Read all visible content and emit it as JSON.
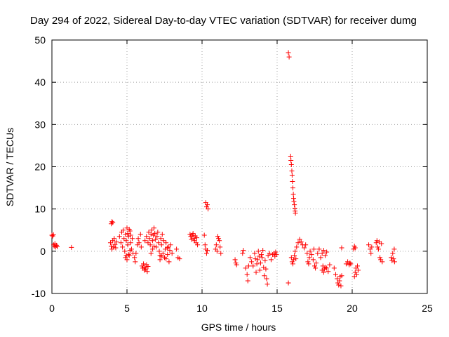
{
  "chart_data": {
    "type": "scatter",
    "title": "Day 294 of 2022, Sidereal Day-to-day VTEC variation (SDTVAR) for receiver dumg",
    "xlabel": "GPS time / hours",
    "ylabel": "SDTVAR / TECUs",
    "xlim": [
      0,
      25
    ],
    "ylim": [
      -10,
      50
    ],
    "xticks": [
      0,
      5,
      10,
      15,
      20,
      25
    ],
    "yticks": [
      -10,
      0,
      10,
      20,
      30,
      40,
      50
    ],
    "xtick_labels": [
      "0",
      "5",
      "10",
      "15",
      "20",
      "25"
    ],
    "ytick_labels": [
      "-10",
      "0",
      "10",
      "20",
      "30",
      "40",
      "50"
    ],
    "grid": true,
    "marker": "+",
    "color": "#ff0000",
    "series": [
      {
        "name": "SDTVAR",
        "points": [
          [
            0.0,
            3.8
          ],
          [
            0.05,
            3.6
          ],
          [
            0.1,
            3.9
          ],
          [
            0.12,
            1.5
          ],
          [
            0.15,
            1.2
          ],
          [
            0.2,
            1.8
          ],
          [
            0.25,
            1.0
          ],
          [
            0.3,
            1.4
          ],
          [
            0.35,
            1.1
          ],
          [
            1.3,
            0.9
          ],
          [
            3.95,
            6.5
          ],
          [
            4.0,
            7.0
          ],
          [
            4.05,
            6.8
          ],
          [
            3.9,
            2.0
          ],
          [
            3.95,
            1.2
          ],
          [
            4.0,
            0.5
          ],
          [
            4.05,
            2.5
          ],
          [
            4.1,
            1.0
          ],
          [
            4.15,
            3.0
          ],
          [
            4.2,
            1.6
          ],
          [
            4.25,
            0.8
          ],
          [
            4.3,
            2.2
          ],
          [
            4.5,
            3.5
          ],
          [
            4.6,
            2.0
          ],
          [
            4.65,
            4.5
          ],
          [
            4.7,
            1.0
          ],
          [
            4.75,
            5.0
          ],
          [
            4.8,
            3.0
          ],
          [
            4.85,
            0.0
          ],
          [
            4.9,
            4.0
          ],
          [
            4.95,
            2.5
          ],
          [
            5.0,
            5.5
          ],
          [
            5.05,
            1.5
          ],
          [
            5.1,
            3.5
          ],
          [
            5.15,
            -1.0
          ],
          [
            5.2,
            4.8
          ],
          [
            5.25,
            2.0
          ],
          [
            5.3,
            0.5
          ],
          [
            5.35,
            3.0
          ],
          [
            5.4,
            -0.5
          ],
          [
            4.9,
            -1.5
          ],
          [
            5.0,
            -2.0
          ],
          [
            5.1,
            -0.8
          ],
          [
            5.2,
            0.2
          ],
          [
            4.95,
            -1.0
          ],
          [
            5.05,
            4.2
          ],
          [
            5.15,
            5.2
          ],
          [
            5.25,
            3.8
          ],
          [
            5.5,
            -1.5
          ],
          [
            5.55,
            -2.5
          ],
          [
            5.6,
            -0.5
          ],
          [
            5.7,
            1.5
          ],
          [
            5.75,
            3.0
          ],
          [
            5.8,
            2.0
          ],
          [
            5.9,
            4.0
          ],
          [
            5.95,
            1.0
          ],
          [
            6.0,
            -3.5
          ],
          [
            6.05,
            -4.0
          ],
          [
            6.1,
            -3.0
          ],
          [
            6.15,
            -4.5
          ],
          [
            6.2,
            -3.8
          ],
          [
            6.25,
            -4.2
          ],
          [
            6.3,
            -3.2
          ],
          [
            6.35,
            -4.8
          ],
          [
            6.4,
            -3.6
          ],
          [
            6.2,
            2.5
          ],
          [
            6.3,
            3.5
          ],
          [
            6.4,
            2.0
          ],
          [
            6.45,
            4.5
          ],
          [
            6.5,
            3.0
          ],
          [
            6.55,
            1.5
          ],
          [
            6.6,
            4.0
          ],
          [
            6.65,
            5.0
          ],
          [
            6.7,
            2.5
          ],
          [
            6.75,
            3.8
          ],
          [
            6.8,
            5.5
          ],
          [
            6.85,
            4.2
          ],
          [
            6.9,
            2.8
          ],
          [
            6.95,
            1.0
          ],
          [
            7.0,
            3.5
          ],
          [
            6.7,
            0.5
          ],
          [
            6.6,
            -0.5
          ],
          [
            6.8,
            1.2
          ],
          [
            7.05,
            4.5
          ],
          [
            7.1,
            2.0
          ],
          [
            7.15,
            0.0
          ],
          [
            7.2,
            -1.0
          ],
          [
            7.25,
            3.0
          ],
          [
            7.3,
            1.5
          ],
          [
            7.35,
            4.0
          ],
          [
            7.4,
            -0.5
          ],
          [
            7.45,
            2.5
          ],
          [
            7.5,
            -1.5
          ],
          [
            7.55,
            0.5
          ],
          [
            7.6,
            2.0
          ],
          [
            7.7,
            -0.8
          ],
          [
            7.75,
            1.0
          ],
          [
            7.8,
            -2.5
          ],
          [
            7.85,
            0.2
          ],
          [
            7.9,
            1.5
          ],
          [
            8.0,
            -0.5
          ],
          [
            7.2,
            -2.0
          ],
          [
            7.3,
            -1.2
          ],
          [
            7.6,
            -1.8
          ],
          [
            7.7,
            0.8
          ],
          [
            8.3,
            0.5
          ],
          [
            8.4,
            -1.5
          ],
          [
            8.5,
            -1.8
          ],
          [
            9.2,
            4.0
          ],
          [
            9.25,
            3.5
          ],
          [
            9.3,
            2.8
          ],
          [
            9.35,
            3.8
          ],
          [
            9.4,
            4.2
          ],
          [
            9.45,
            3.0
          ],
          [
            9.5,
            2.5
          ],
          [
            9.55,
            3.6
          ],
          [
            9.6,
            2.0
          ],
          [
            9.65,
            3.2
          ],
          [
            9.7,
            1.5
          ],
          [
            10.15,
            3.8
          ],
          [
            10.2,
            1.5
          ],
          [
            10.25,
            0.5
          ],
          [
            10.3,
            -0.5
          ],
          [
            10.35,
            0.2
          ],
          [
            10.25,
            11.5
          ],
          [
            10.3,
            10.5
          ],
          [
            10.35,
            11.0
          ],
          [
            10.4,
            10.0
          ],
          [
            10.9,
            0.5
          ],
          [
            10.95,
            1.5
          ],
          [
            11.0,
            0.0
          ],
          [
            11.05,
            3.5
          ],
          [
            11.1,
            3.0
          ],
          [
            11.15,
            2.5
          ],
          [
            11.2,
            1.0
          ],
          [
            11.25,
            -0.5
          ],
          [
            12.2,
            -2.0
          ],
          [
            12.25,
            -2.8
          ],
          [
            12.3,
            -3.2
          ],
          [
            12.7,
            -0.5
          ],
          [
            12.75,
            0.2
          ],
          [
            12.9,
            -4.0
          ],
          [
            13.0,
            -5.5
          ],
          [
            13.05,
            -7.0
          ],
          [
            13.1,
            -3.5
          ],
          [
            13.2,
            -1.5
          ],
          [
            13.3,
            -2.5
          ],
          [
            13.4,
            -3.5
          ],
          [
            13.5,
            -0.5
          ],
          [
            13.55,
            -1.8
          ],
          [
            13.6,
            -5.0
          ],
          [
            13.65,
            -3.0
          ],
          [
            13.7,
            -2.0
          ],
          [
            13.75,
            0.0
          ],
          [
            13.8,
            -1.2
          ],
          [
            13.85,
            -4.5
          ],
          [
            13.9,
            -2.8
          ],
          [
            13.95,
            -0.8
          ],
          [
            14.0,
            -1.5
          ],
          [
            14.05,
            0.2
          ],
          [
            14.1,
            -3.8
          ],
          [
            14.15,
            -5.8
          ],
          [
            14.2,
            -2.2
          ],
          [
            14.25,
            -4.2
          ],
          [
            14.3,
            -6.5
          ],
          [
            14.35,
            -7.8
          ],
          [
            14.4,
            -1.0
          ],
          [
            14.5,
            -0.5
          ],
          [
            14.6,
            -2.0
          ],
          [
            14.7,
            -0.8
          ],
          [
            14.8,
            -0.5
          ],
          [
            14.85,
            -1.2
          ],
          [
            14.9,
            -0.2
          ],
          [
            14.95,
            -0.8
          ],
          [
            15.75,
            -7.5
          ],
          [
            15.75,
            47.0
          ],
          [
            15.8,
            46.0
          ],
          [
            15.9,
            22.5
          ],
          [
            15.92,
            21.5
          ],
          [
            15.95,
            20.5
          ],
          [
            15.98,
            19.0
          ],
          [
            16.0,
            18.0
          ],
          [
            16.02,
            16.5
          ],
          [
            16.05,
            15.0
          ],
          [
            16.08,
            13.5
          ],
          [
            16.1,
            12.5
          ],
          [
            16.12,
            11.8
          ],
          [
            16.15,
            11.0
          ],
          [
            16.18,
            10.2
          ],
          [
            16.2,
            9.5
          ],
          [
            16.22,
            9.0
          ],
          [
            15.95,
            -1.5
          ],
          [
            16.0,
            -2.5
          ],
          [
            16.05,
            -3.0
          ],
          [
            16.1,
            -2.0
          ],
          [
            16.15,
            -1.0
          ],
          [
            16.2,
            0.0
          ],
          [
            16.25,
            -1.8
          ],
          [
            16.3,
            1.0
          ],
          [
            16.4,
            2.0
          ],
          [
            16.5,
            2.8
          ],
          [
            16.6,
            2.2
          ],
          [
            16.7,
            1.5
          ],
          [
            16.8,
            0.8
          ],
          [
            16.9,
            1.5
          ],
          [
            17.0,
            -0.5
          ],
          [
            17.05,
            -2.5
          ],
          [
            17.1,
            -3.0
          ],
          [
            17.15,
            -1.5
          ],
          [
            17.2,
            0.0
          ],
          [
            17.3,
            -0.8
          ],
          [
            17.4,
            -2.0
          ],
          [
            17.45,
            0.5
          ],
          [
            17.5,
            -3.5
          ],
          [
            17.55,
            -4.0
          ],
          [
            17.6,
            -2.8
          ],
          [
            17.7,
            -0.5
          ],
          [
            17.8,
            0.5
          ],
          [
            17.9,
            -1.5
          ],
          [
            18.0,
            -4.5
          ],
          [
            18.05,
            -3.5
          ],
          [
            18.1,
            -5.0
          ],
          [
            18.15,
            -4.2
          ],
          [
            18.2,
            -3.8
          ],
          [
            18.3,
            -4.0
          ],
          [
            18.4,
            -4.8
          ],
          [
            18.5,
            -3.2
          ],
          [
            18.0,
            -0.5
          ],
          [
            18.1,
            0.2
          ],
          [
            18.2,
            -1.0
          ],
          [
            18.3,
            -0.2
          ],
          [
            18.8,
            -4.0
          ],
          [
            18.9,
            -5.5
          ],
          [
            19.0,
            -6.5
          ],
          [
            19.05,
            -7.5
          ],
          [
            19.1,
            -8.0
          ],
          [
            19.15,
            -7.0
          ],
          [
            19.2,
            -6.0
          ],
          [
            19.25,
            -8.2
          ],
          [
            19.3,
            -5.8
          ],
          [
            19.3,
            0.8
          ],
          [
            19.6,
            -3.0
          ],
          [
            19.7,
            -2.5
          ],
          [
            19.8,
            -3.2
          ],
          [
            19.85,
            -2.8
          ],
          [
            19.9,
            -3.0
          ],
          [
            20.1,
            0.5
          ],
          [
            20.15,
            1.2
          ],
          [
            20.2,
            0.8
          ],
          [
            20.15,
            -6.0
          ],
          [
            20.2,
            -5.0
          ],
          [
            20.25,
            -4.0
          ],
          [
            20.3,
            -5.5
          ],
          [
            20.35,
            -3.5
          ],
          [
            20.4,
            -4.5
          ],
          [
            21.1,
            1.5
          ],
          [
            21.2,
            0.5
          ],
          [
            21.25,
            -0.5
          ],
          [
            21.3,
            1.0
          ],
          [
            21.6,
            2.0
          ],
          [
            21.65,
            2.5
          ],
          [
            21.7,
            1.0
          ],
          [
            21.75,
            0.5
          ],
          [
            21.8,
            2.2
          ],
          [
            21.85,
            -1.5
          ],
          [
            21.9,
            -2.0
          ],
          [
            21.95,
            1.8
          ],
          [
            22.0,
            -2.5
          ],
          [
            22.6,
            -1.5
          ],
          [
            22.65,
            -2.2
          ],
          [
            22.7,
            -0.5
          ],
          [
            22.75,
            -1.8
          ],
          [
            22.8,
            0.5
          ],
          [
            22.82,
            -2.5
          ]
        ]
      }
    ]
  }
}
